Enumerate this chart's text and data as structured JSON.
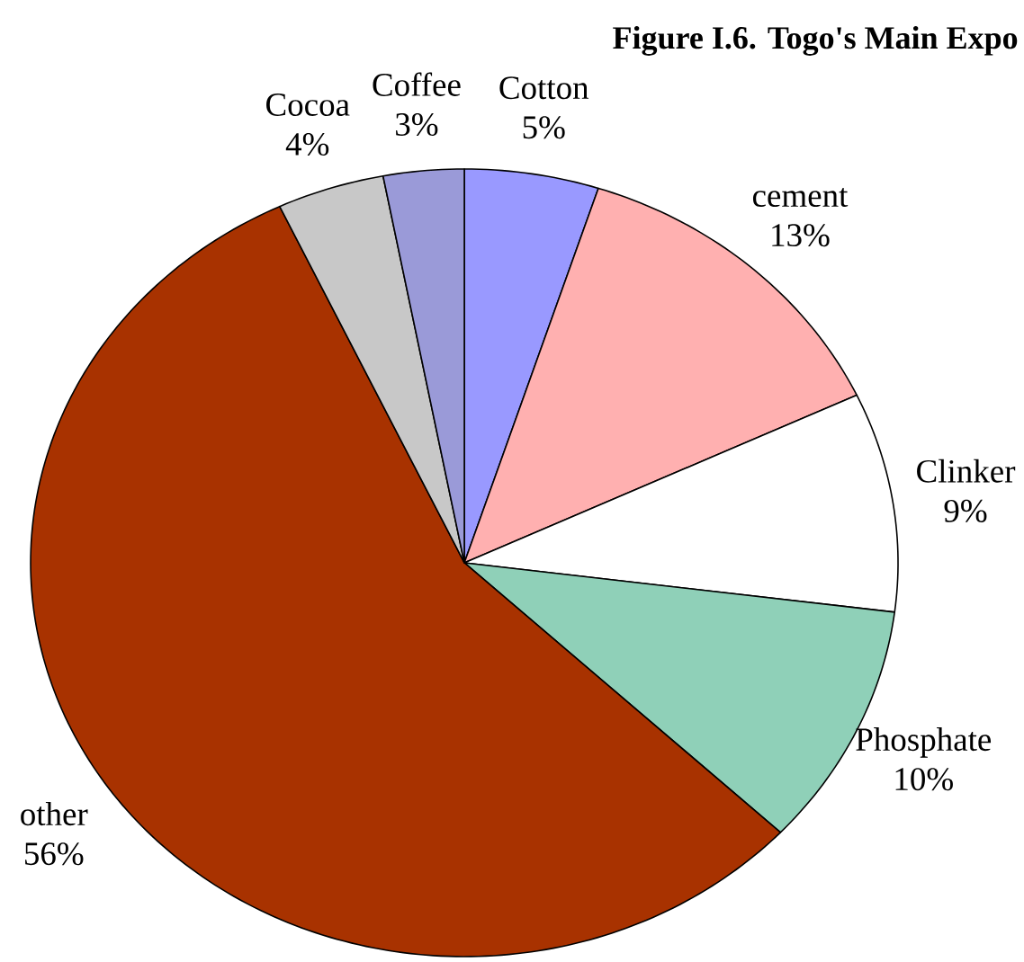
{
  "chart_data": {
    "type": "pie",
    "title": "Figure I.6. Togo's Main Expo",
    "categories": [
      "Cotton",
      "cement",
      "Clinker",
      "Phosphate",
      "other",
      "Cocoa",
      "Coffee"
    ],
    "values": [
      5,
      13,
      9,
      10,
      56,
      4,
      3
    ],
    "value_labels": [
      "5%",
      "13%",
      "9%",
      "10%",
      "56%",
      "4%",
      "3%"
    ],
    "colors": [
      "#9999ff",
      "#ffb0b0",
      "#ffffff",
      "#8fd0b8",
      "#a83200",
      "#c8c8c8",
      "#9a9ad8"
    ]
  }
}
